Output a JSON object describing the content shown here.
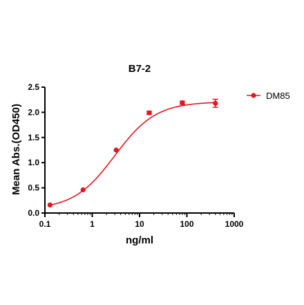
{
  "chart_data": {
    "type": "scatter",
    "title": "B7-2",
    "xlabel": "ng/ml",
    "ylabel": "Mean Abs.(OD450)",
    "x_scale": "log",
    "xlim": [
      0.1,
      1000
    ],
    "ylim": [
      0,
      2.5
    ],
    "x_ticks": [
      0.1,
      1,
      10,
      100,
      1000
    ],
    "x_tick_labels": [
      "0.1",
      "1",
      "10",
      "100",
      "1000"
    ],
    "y_ticks": [
      0,
      0.5,
      1,
      1.5,
      2,
      2.5
    ],
    "y_tick_labels": [
      "0.0",
      "0.5",
      "1.0",
      "1.5",
      "2.0",
      "2.5"
    ],
    "grid": false,
    "legend_position": "top-right",
    "color": "#e8141b",
    "series": [
      {
        "name": "DM85",
        "x": [
          0.128,
          0.64,
          3.2,
          16,
          80,
          400
        ],
        "y": [
          0.16,
          0.46,
          1.25,
          1.99,
          2.19,
          2.18
        ],
        "error": [
          0.01,
          0.02,
          0.02,
          0.03,
          0.03,
          0.08
        ],
        "fit": {
          "model": "4PL",
          "bottom": 0.07,
          "top": 2.21,
          "ec50": 3.0,
          "hill": 1.0
        }
      }
    ]
  }
}
